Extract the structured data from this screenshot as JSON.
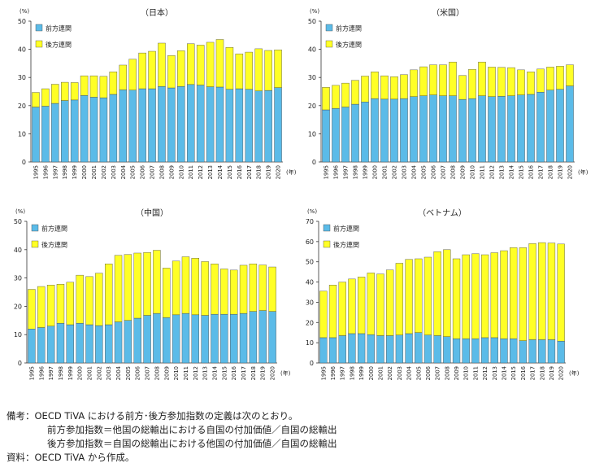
{
  "colors": {
    "forward": "#5bbbe8",
    "backward": "#ffff26",
    "stroke": "#444444"
  },
  "chart_data": [
    {
      "type": "bar",
      "stacked": true,
      "title": "（日本）",
      "unit_label": "(%)",
      "x_unit_label": "(年)",
      "ylim": [
        0,
        50
      ],
      "yticks": [
        0,
        10,
        20,
        30,
        40,
        50
      ],
      "legend_placement": "top-left",
      "categories": [
        "1995",
        "1996",
        "1997",
        "1998",
        "1999",
        "2000",
        "2001",
        "2002",
        "2003",
        "2004",
        "2005",
        "2006",
        "2007",
        "2008",
        "2009",
        "2010",
        "2011",
        "2012",
        "2013",
        "2014",
        "2015",
        "2016",
        "2017",
        "2018",
        "2019",
        "2020"
      ],
      "series": [
        {
          "name": "前方連関",
          "values": [
            19.5,
            19.8,
            20.8,
            21.8,
            22,
            23.6,
            23,
            22.8,
            24,
            25.6,
            25.5,
            26,
            26,
            26.8,
            26.3,
            26.8,
            27.5,
            27.3,
            26.7,
            26.6,
            25.8,
            26,
            25.8,
            25.2,
            25.4,
            26.4
          ]
        },
        {
          "name": "後方連関",
          "values": [
            5.2,
            6.2,
            6.8,
            6.5,
            6.2,
            7,
            7.6,
            7.6,
            8,
            8.8,
            11,
            12.7,
            13.3,
            15.4,
            11.5,
            12.7,
            14.5,
            14.2,
            15.8,
            16.9,
            14.9,
            12.4,
            13.2,
            15,
            14.2,
            13.4
          ]
        }
      ]
    },
    {
      "type": "bar",
      "stacked": true,
      "title": "（米国）",
      "unit_label": "(%)",
      "x_unit_label": "(年)",
      "ylim": [
        0,
        50
      ],
      "yticks": [
        0,
        10,
        20,
        30,
        40,
        50
      ],
      "legend_placement": "top-left",
      "categories": [
        "1995",
        "1996",
        "1997",
        "1998",
        "1999",
        "2000",
        "2001",
        "2002",
        "2003",
        "2004",
        "2005",
        "2006",
        "2007",
        "2008",
        "2009",
        "2010",
        "2011",
        "2012",
        "2013",
        "2014",
        "2015",
        "2016",
        "2017",
        "2018",
        "2019",
        "2020"
      ],
      "series": [
        {
          "name": "前方連関",
          "values": [
            18.5,
            19,
            19.5,
            20.5,
            21.3,
            22.5,
            22.3,
            22.3,
            22.5,
            23.2,
            23.5,
            23.8,
            23.5,
            23.5,
            22.2,
            22.5,
            23.5,
            23.2,
            23.3,
            23.5,
            23.8,
            24,
            24.8,
            25.5,
            25.8,
            27
          ]
        },
        {
          "name": "後方連関",
          "values": [
            8,
            8.2,
            8.5,
            8.5,
            9.2,
            9.5,
            8.3,
            8,
            8.5,
            9.5,
            10.3,
            10.7,
            11,
            12,
            8.5,
            10.4,
            12,
            10.5,
            10.3,
            10,
            8.9,
            8,
            8.2,
            8.2,
            8.2,
            7.5
          ]
        }
      ]
    },
    {
      "type": "bar",
      "stacked": true,
      "title": "（中国）",
      "unit_label": "(%)",
      "x_unit_label": "(年)",
      "ylim": [
        0,
        50
      ],
      "yticks": [
        0,
        10,
        20,
        30,
        40,
        50
      ],
      "legend_placement": "top-left",
      "categories": [
        "1995",
        "1996",
        "1997",
        "1998",
        "1999",
        "2000",
        "2001",
        "2002",
        "2003",
        "2004",
        "2005",
        "2006",
        "2007",
        "2008",
        "2009",
        "2010",
        "2011",
        "2012",
        "2013",
        "2014",
        "2015",
        "2016",
        "2017",
        "2018",
        "2019",
        "2020"
      ],
      "series": [
        {
          "name": "前方連関",
          "values": [
            12,
            12.5,
            13,
            14,
            13.5,
            14,
            13.5,
            13.2,
            13.5,
            14.5,
            15,
            15.8,
            16.8,
            17.5,
            16,
            17,
            17.5,
            17,
            16.8,
            17.2,
            17.2,
            17.2,
            17.5,
            18.2,
            18.5,
            18.2
          ]
        },
        {
          "name": "後方連関",
          "values": [
            14,
            14.5,
            14.5,
            13.8,
            15,
            17,
            17,
            18.5,
            21.5,
            23.5,
            23.3,
            23,
            22.2,
            22.3,
            17.5,
            19,
            20,
            20,
            19,
            17.8,
            16,
            15.6,
            17,
            16.8,
            16.1,
            15.7
          ]
        }
      ]
    },
    {
      "type": "bar",
      "stacked": true,
      "title": "（ベトナム）",
      "unit_label": "(%)",
      "x_unit_label": "(年)",
      "ylim": [
        0,
        70
      ],
      "yticks": [
        0,
        10,
        20,
        30,
        40,
        50,
        60,
        70
      ],
      "legend_placement": "top-left",
      "categories": [
        "1995",
        "1996",
        "1997",
        "1998",
        "1999",
        "2000",
        "2001",
        "2002",
        "2003",
        "2004",
        "2005",
        "2006",
        "2007",
        "2008",
        "2009",
        "2010",
        "2011",
        "2012",
        "2013",
        "2014",
        "2015",
        "2016",
        "2017",
        "2018",
        "2019",
        "2020"
      ],
      "series": [
        {
          "name": "前方連関",
          "values": [
            12.5,
            12.5,
            13.5,
            14.5,
            14.5,
            14,
            13.5,
            13.5,
            13.8,
            14.5,
            15,
            13.8,
            13.5,
            13,
            12,
            12,
            12,
            12.5,
            12.5,
            12,
            12,
            11,
            11.5,
            11.5,
            11.5,
            10.8
          ]
        },
        {
          "name": "後方連関",
          "values": [
            23,
            26,
            26.5,
            27,
            28,
            30.5,
            30.5,
            32.5,
            35.5,
            36.7,
            36.5,
            38.5,
            41.5,
            43,
            39.5,
            41.5,
            42,
            41,
            42,
            43.5,
            45,
            46,
            47.5,
            48,
            47.8,
            48
          ]
        }
      ]
    }
  ],
  "notes": {
    "line1": "備考：OECD TiVA における前方･後方参加指数の定義は次のとおり。",
    "line2": "前方参加指数＝他国の総輸出における自国の付加価値／自国の総輸出",
    "line3": "後方参加指数＝自国の総輸出における他国の付加価値／自国の総輸出",
    "line4": "資料：OECD TiVA から作成。"
  }
}
